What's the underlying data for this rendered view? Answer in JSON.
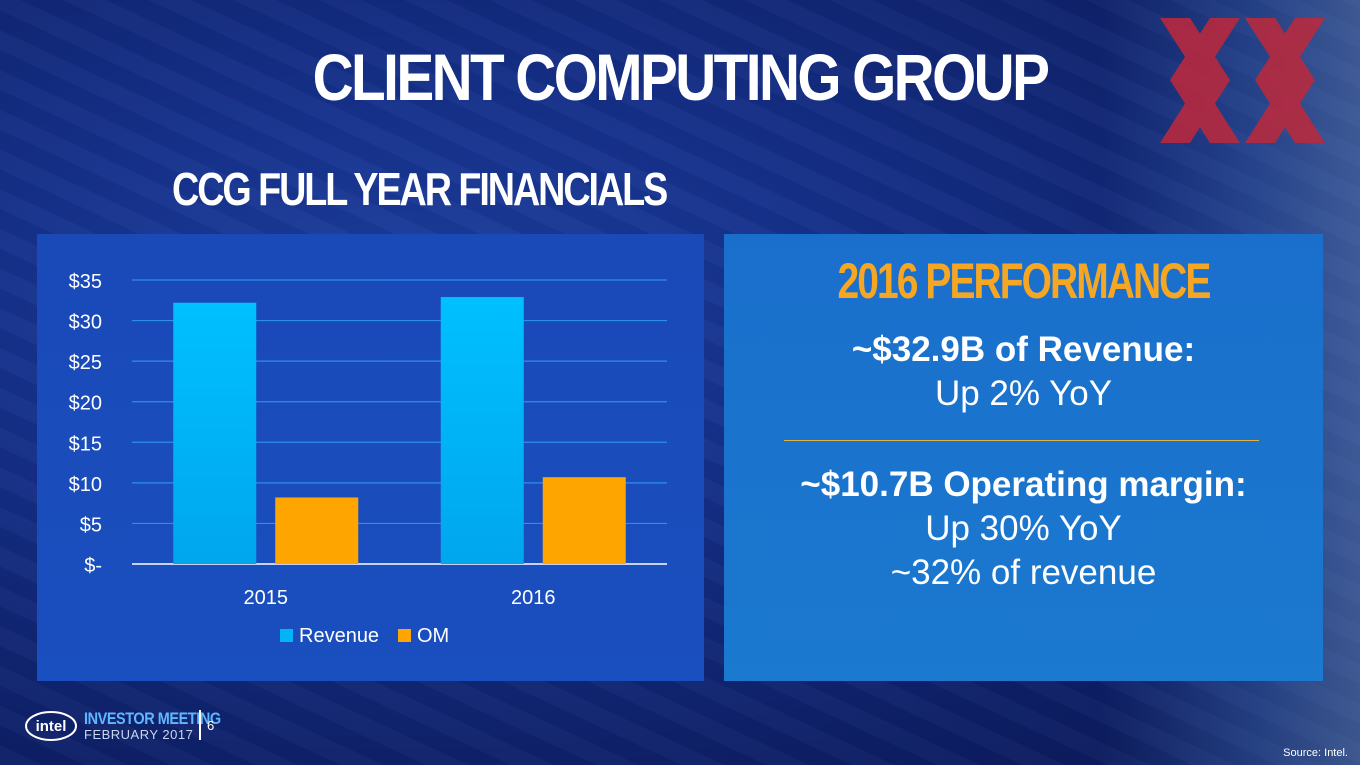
{
  "slide": {
    "title": "CLIENT COMPUTING GROUP",
    "subtitle": "CCG FULL YEAR FINANCIALS"
  },
  "performance": {
    "heading": "2016 PERFORMANCE",
    "revenue_headline": "~$32.9B of Revenue:",
    "revenue_detail": "Up 2% YoY",
    "om_headline": "~$10.7B Operating margin:",
    "om_detail": "Up 30% YoY",
    "om_share": "~32% of revenue"
  },
  "footer": {
    "logo_text": "intel",
    "event": "INVESTOR MEETING",
    "date": "FEBRUARY 2017",
    "page": "6",
    "source": "Source: Intel."
  },
  "colors": {
    "revenue": "#00b4f5",
    "om": "#ffa500",
    "accent": "#f5a623"
  },
  "chart_data": {
    "type": "bar",
    "categories": [
      "2015",
      "2016"
    ],
    "series": [
      {
        "name": "Revenue",
        "values": [
          32.2,
          32.9
        ]
      },
      {
        "name": "OM",
        "values": [
          8.2,
          10.7
        ]
      }
    ],
    "y_tick_labels": [
      "$-",
      "$5",
      "$10",
      "$15",
      "$20",
      "$25",
      "$30",
      "$35"
    ],
    "y_ticks": [
      0,
      5,
      10,
      15,
      20,
      25,
      30,
      35
    ],
    "ylim": [
      0,
      35
    ],
    "grid": true,
    "legend": "bottom"
  }
}
